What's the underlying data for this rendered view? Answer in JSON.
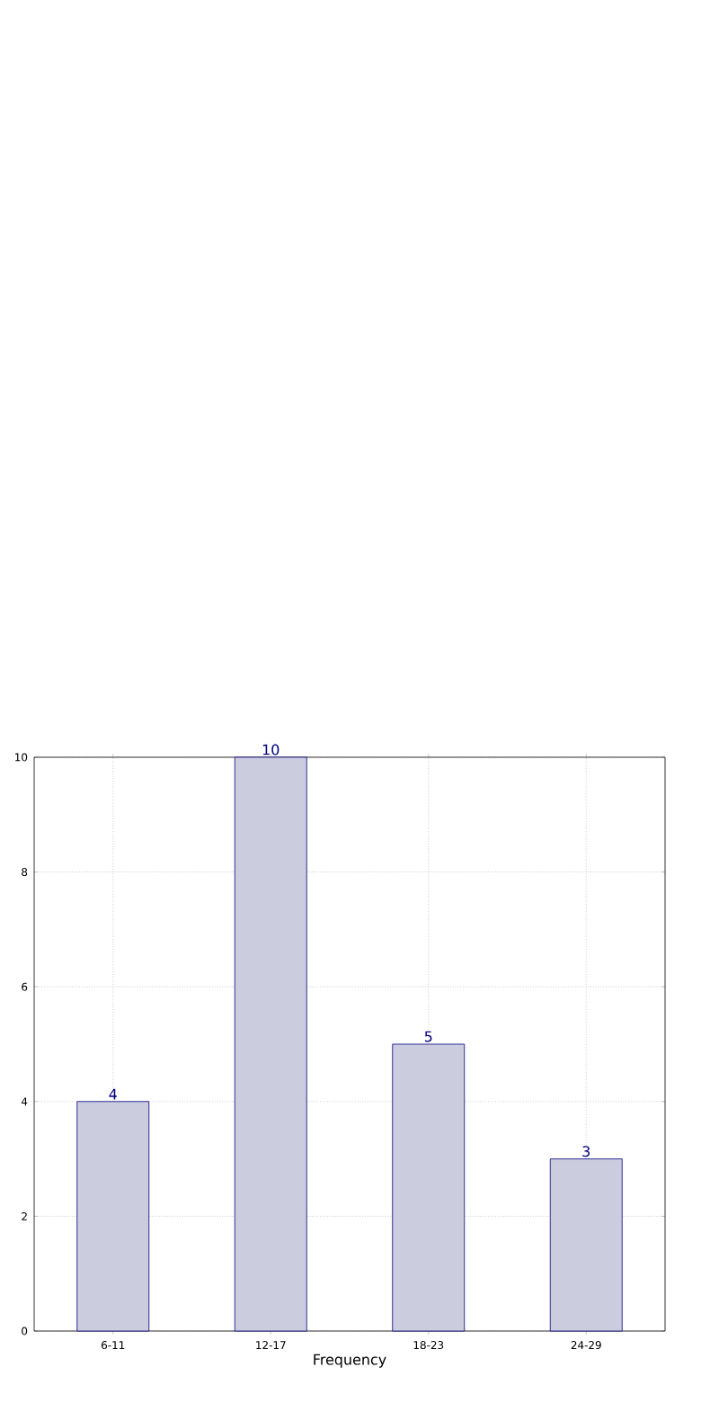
{
  "chart_data": {
    "type": "bar",
    "xlabel": "Frequency",
    "categories": [
      "6-11",
      "12-17",
      "18-23",
      "24-29"
    ],
    "values": [
      4,
      10,
      5,
      3
    ],
    "color": "#ccccdf",
    "ylim": [
      0,
      10
    ],
    "yticks": [
      0,
      2,
      4,
      6,
      8,
      10
    ],
    "grid": true,
    "data_labels": true
  }
}
